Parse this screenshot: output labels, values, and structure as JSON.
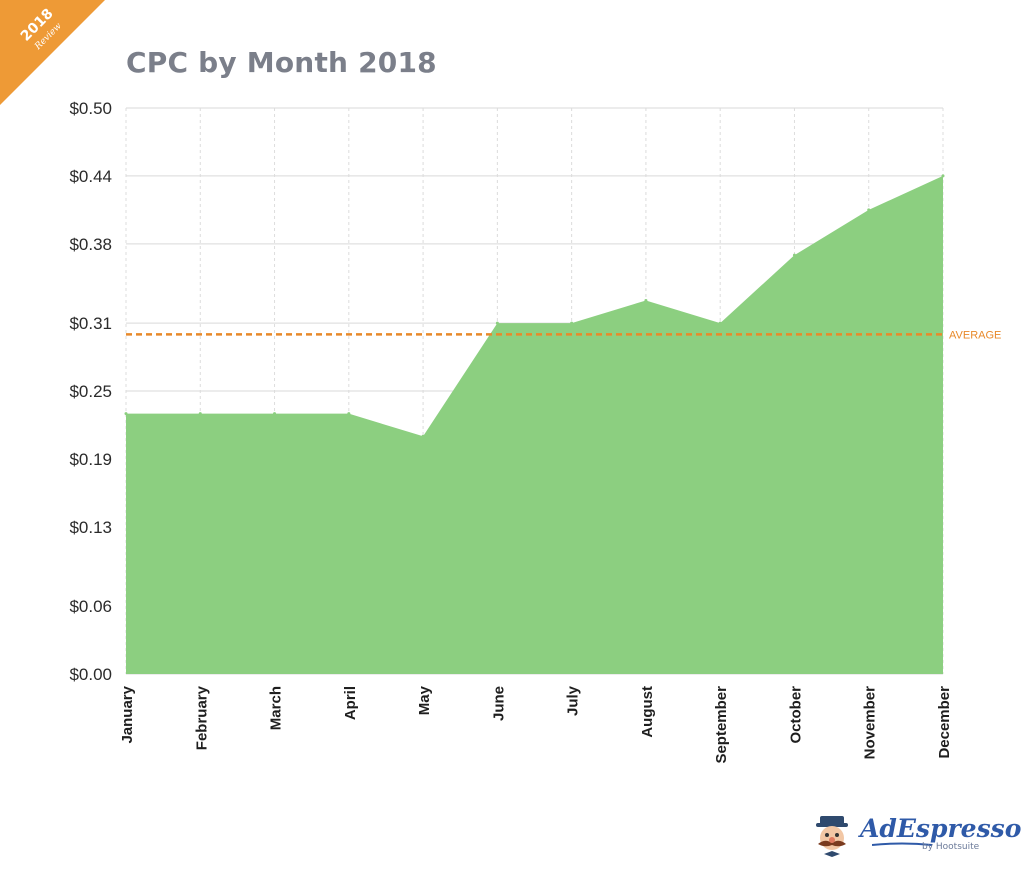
{
  "badge": {
    "year": "2018",
    "label": "Review",
    "color": "#ee9a36"
  },
  "title": "CPC by Month 2018",
  "chart_data": {
    "type": "area",
    "title": "CPC by Month 2018",
    "xlabel": "",
    "ylabel": "",
    "categories": [
      "January",
      "February",
      "March",
      "April",
      "May",
      "June",
      "July",
      "August",
      "September",
      "October",
      "November",
      "December"
    ],
    "series": [
      {
        "name": "CPC",
        "values": [
          0.23,
          0.23,
          0.23,
          0.23,
          0.21,
          0.31,
          0.31,
          0.33,
          0.31,
          0.37,
          0.41,
          0.44
        ],
        "color": "#8ccf80"
      }
    ],
    "yticks": [
      0,
      0.06,
      0.13,
      0.19,
      0.25,
      0.31,
      0.38,
      0.44,
      0.5
    ],
    "ytick_labels": [
      "$0.00",
      "$0.06",
      "$0.13",
      "$0.19",
      "$0.25",
      "$0.31",
      "$0.38",
      "$0.44",
      "$0.50"
    ],
    "ylim": [
      0,
      0.5
    ],
    "grid": true,
    "average": {
      "label": "AVERAGE",
      "value": 0.3,
      "color": "#e8892a"
    }
  },
  "brand": {
    "name": "AdEspresso",
    "byline": "by Hootsuite",
    "color": "#2f5aa8"
  }
}
